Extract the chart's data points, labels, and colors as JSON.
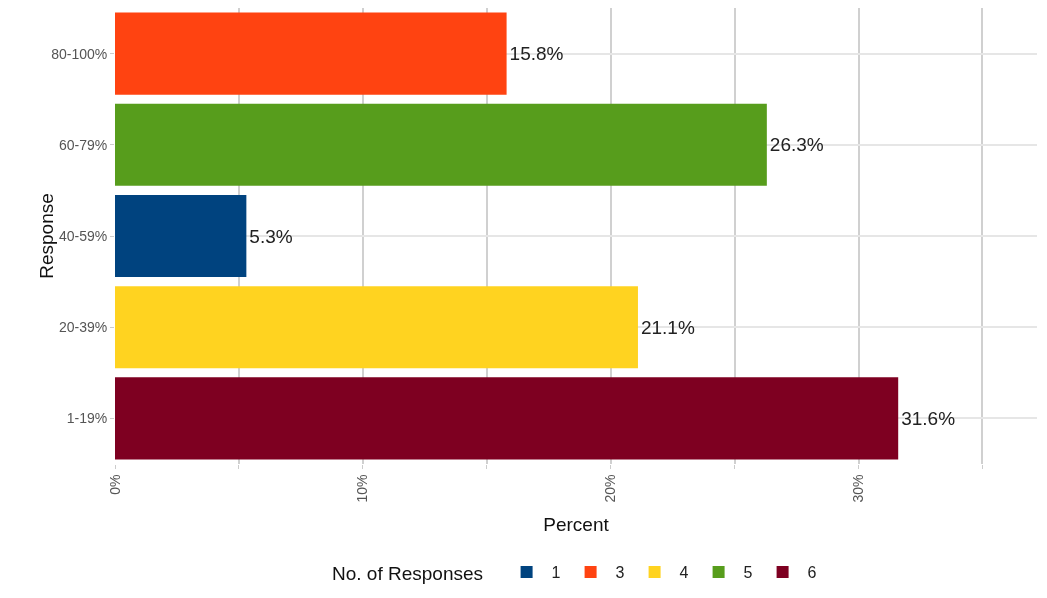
{
  "chart_data": {
    "type": "bar",
    "orientation": "horizontal",
    "xlabel": "Percent",
    "ylabel": "Response",
    "legend_title": "No. of Responses",
    "categories": [
      "80-100%",
      "60-79%",
      "40-59%",
      "20-39%",
      "1-19%"
    ],
    "series": [
      {
        "name": "1",
        "color": "#00437f",
        "values": [
          null,
          null,
          5.3,
          null,
          null
        ],
        "value_labels": [
          null,
          null,
          "5.3%",
          null,
          null
        ]
      },
      {
        "name": "3",
        "color": "#ff4311",
        "values": [
          15.8,
          null,
          null,
          null,
          null
        ],
        "value_labels": [
          "15.8%",
          null,
          null,
          null,
          null
        ]
      },
      {
        "name": "4",
        "color": "#ffd320",
        "values": [
          null,
          null,
          null,
          21.1,
          null
        ],
        "value_labels": [
          null,
          null,
          null,
          "21.1%",
          null
        ]
      },
      {
        "name": "5",
        "color": "#579d1c",
        "values": [
          null,
          26.3,
          null,
          null,
          null
        ],
        "value_labels": [
          null,
          "26.3%",
          null,
          null,
          null
        ]
      },
      {
        "name": "6",
        "color": "#7e0021",
        "values": [
          null,
          null,
          null,
          null,
          31.6
        ],
        "value_labels": [
          null,
          null,
          null,
          null,
          "31.6%"
        ]
      }
    ],
    "xlim": [
      0,
      37.2
    ],
    "xticks": [
      {
        "value": 0,
        "label": "0%"
      },
      {
        "value": 5,
        "label": null
      },
      {
        "value": 10,
        "label": "10%"
      },
      {
        "value": 15,
        "label": null
      },
      {
        "value": 20,
        "label": "20%"
      },
      {
        "value": 25,
        "label": null
      },
      {
        "value": 30,
        "label": "30%"
      },
      {
        "value": 35,
        "label": null
      }
    ],
    "grid": true,
    "legend": "bottom"
  }
}
